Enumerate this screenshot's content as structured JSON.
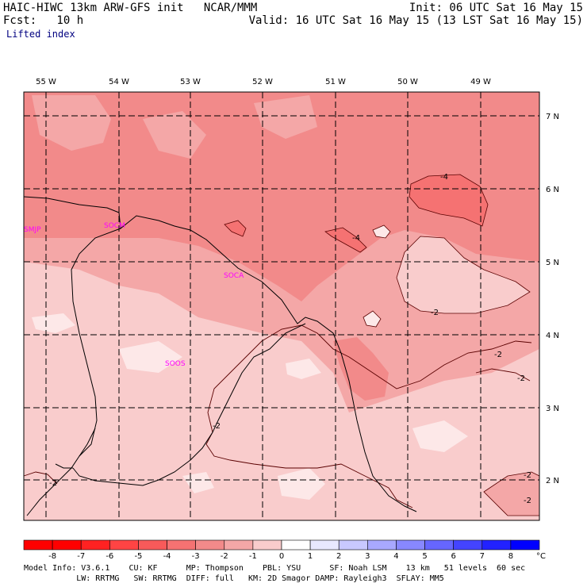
{
  "header": {
    "line1_left": "HAIC-HIWC 13km ARW-GFS init   NCAR/MMM",
    "line1_right": "Init: 06 UTC Sat 16 May 15",
    "line2_left": "Fcst:   10 h",
    "line2_right": "Valid: 16 UTC Sat 16 May 15 (13 LST Sat 16 May 15)",
    "field": "Lifted index"
  },
  "map": {
    "lon_labels": [
      "55 W",
      "54 W",
      "53 W",
      "52 W",
      "51 W",
      "50 W",
      "49 W"
    ],
    "lat_labels": [
      "7 N",
      "6 N",
      "5 N",
      "4 N",
      "3 N",
      "2 N"
    ],
    "stations": [
      "SMJP",
      "SOCM",
      "SOCA",
      "SOOS"
    ],
    "contour_labels": [
      "-4",
      "-4",
      "-2",
      "-2",
      "-2",
      "-2",
      "-2",
      "-2",
      "-2"
    ]
  },
  "colorbar": {
    "ticks": [
      "-8",
      "-7",
      "-6",
      "-5",
      "-4",
      "-3",
      "-2",
      "-1",
      "0",
      "1",
      "2",
      "3",
      "4",
      "5",
      "6",
      "7",
      "8"
    ],
    "unit": "°C",
    "colors": [
      "#ff0000",
      "#ff2222",
      "#ff4444",
      "#f85a5a",
      "#f57272",
      "#f28a8a",
      "#f4a7a7",
      "#f9cccc",
      "#ffffff",
      "#e8e8ff",
      "#c8c8ff",
      "#a8a8ff",
      "#8888ff",
      "#6666ff",
      "#4444ff",
      "#2222ff",
      "#0000ff"
    ]
  },
  "footer": {
    "line1": "Model Info: V3.6.1    CU: KF      MP: Thompson    PBL: YSU      SF: Noah LSM    13 km   51 levels  60 sec",
    "line2": "           LW: RRTMG   SW: RRTMG  DIFF: full   KM: 2D Smagor DAMP: Rayleigh3  SFLAY: MM5"
  }
}
